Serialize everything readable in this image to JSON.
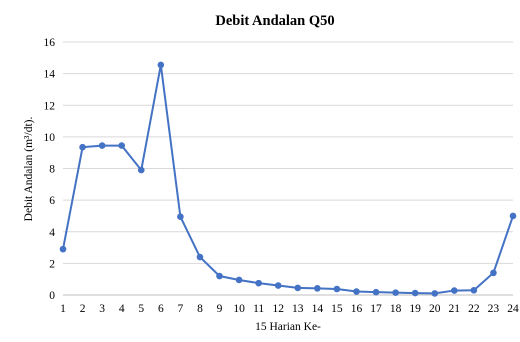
{
  "chart_data": {
    "type": "line",
    "title": "Debit Andalan  Q50",
    "xlabel": "15 Harian Ke-",
    "ylabel": "Debit Andalan (m³/dt).",
    "x": [
      1,
      2,
      3,
      4,
      5,
      6,
      7,
      8,
      9,
      10,
      11,
      12,
      13,
      14,
      15,
      16,
      17,
      18,
      19,
      20,
      21,
      22,
      23,
      24
    ],
    "series": [
      {
        "values": [
          2.9,
          9.35,
          9.45,
          9.45,
          7.9,
          14.55,
          4.95,
          2.4,
          1.2,
          0.95,
          0.75,
          0.6,
          0.45,
          0.42,
          0.38,
          0.22,
          0.18,
          0.15,
          0.12,
          0.1,
          0.28,
          0.3,
          1.4,
          5.0
        ],
        "color": "#4472c4"
      }
    ],
    "ylim": [
      0,
      16
    ],
    "yticks": [
      0,
      2,
      4,
      6,
      8,
      10,
      12,
      14,
      16
    ],
    "grid": true,
    "legend": "none"
  }
}
